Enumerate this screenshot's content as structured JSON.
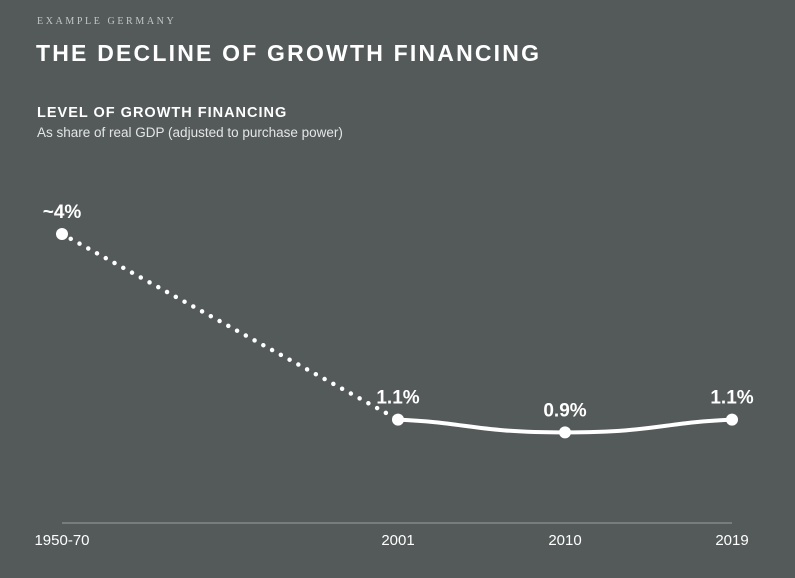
{
  "eyebrow": "EXAMPLE GERMANY",
  "title": "THE DECLINE OF GROWTH FINANCING",
  "chart_data": {
    "type": "line",
    "title": "LEVEL OF GROWTH FINANCING",
    "subtitle": "As share of real GDP (adjusted to purchase power)",
    "categories": [
      "1950-70",
      "2001",
      "2010",
      "2019"
    ],
    "series": [
      {
        "values": [
          4.0,
          1.1,
          0.9,
          1.1
        ],
        "data_labels": [
          "~4%",
          "1.1%",
          "0.9%",
          "1.1%"
        ]
      }
    ],
    "segment_styles": [
      "dotted",
      "solid",
      "solid"
    ],
    "x_positions": [
      1960,
      2001,
      2010,
      2019
    ],
    "grid": false,
    "legend": "none"
  },
  "colors": {
    "background": "#545a5a",
    "line": "#ffffff",
    "axis": "#9aa0a0"
  }
}
